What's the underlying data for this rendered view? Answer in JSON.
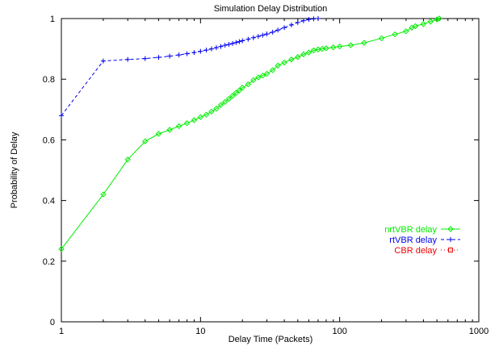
{
  "chart_data": {
    "type": "line",
    "title": "Simulation Delay Distribution",
    "xlabel": "Delay Time (Packets)",
    "ylabel": "Probability of Delay",
    "xscale": "log",
    "xlim": [
      1,
      1000
    ],
    "ylim": [
      0,
      1
    ],
    "xticks": [
      "1",
      "10",
      "100",
      "1000"
    ],
    "yticks": [
      "0",
      "0.2",
      "0.4",
      "0.6",
      "0.8",
      "1"
    ],
    "grid": false,
    "legend_position": "right",
    "series": [
      {
        "name": "nrtVBR delay",
        "color": "#00ee00",
        "marker": "diamond",
        "line_style": "solid",
        "x": [
          1,
          2,
          3,
          4,
          5,
          6,
          7,
          8,
          9,
          10,
          11,
          12,
          13,
          14,
          15,
          16,
          17,
          18,
          19,
          20,
          22,
          24,
          26,
          28,
          30,
          33,
          36,
          40,
          45,
          50,
          55,
          60,
          65,
          70,
          75,
          80,
          90,
          100,
          120,
          150,
          200,
          250,
          300,
          330,
          350,
          400,
          450,
          500,
          520
        ],
        "values": [
          0.24,
          0.42,
          0.535,
          0.595,
          0.62,
          0.633,
          0.645,
          0.655,
          0.665,
          0.675,
          0.683,
          0.693,
          0.703,
          0.715,
          0.725,
          0.735,
          0.745,
          0.755,
          0.763,
          0.772,
          0.783,
          0.797,
          0.806,
          0.812,
          0.818,
          0.83,
          0.845,
          0.855,
          0.865,
          0.873,
          0.882,
          0.888,
          0.895,
          0.898,
          0.9,
          0.902,
          0.905,
          0.908,
          0.912,
          0.92,
          0.935,
          0.948,
          0.958,
          0.97,
          0.975,
          0.982,
          0.99,
          0.997,
          1.0
        ]
      },
      {
        "name": "rtVBR delay",
        "color": "#0000ee",
        "marker": "plus",
        "line_style": "dashed",
        "x": [
          1,
          2,
          3,
          4,
          5,
          6,
          7,
          8,
          9,
          10,
          11,
          12,
          13,
          14,
          15,
          16,
          17,
          18,
          19,
          20,
          22,
          24,
          26,
          28,
          30,
          33,
          36,
          40,
          45,
          50,
          55,
          60,
          65,
          70
        ],
        "values": [
          0.68,
          0.86,
          0.865,
          0.868,
          0.872,
          0.876,
          0.88,
          0.884,
          0.888,
          0.892,
          0.896,
          0.9,
          0.904,
          0.908,
          0.912,
          0.915,
          0.918,
          0.921,
          0.924,
          0.927,
          0.932,
          0.937,
          0.941,
          0.945,
          0.949,
          0.955,
          0.962,
          0.97,
          0.979,
          0.987,
          0.993,
          0.997,
          0.999,
          1.0
        ]
      },
      {
        "name": "CBR delay",
        "color": "#ee0000",
        "marker": "square",
        "line_style": "dotted",
        "x": [],
        "values": []
      }
    ]
  }
}
